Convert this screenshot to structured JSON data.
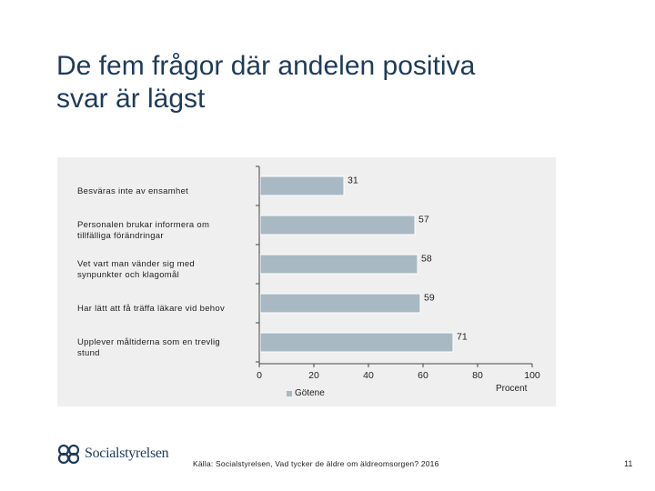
{
  "slide": {
    "title_line1": "De fem frågor där andelen positiva",
    "title_line2": "svar är lägst",
    "source": "Källa: Socialstyrelsen, Vad tycker de äldre om äldreomsorgen? 2016",
    "page_number": "11",
    "logo_text": "Socialstyrelsen"
  },
  "colors": {
    "bar": "#a9b9c3",
    "panel": "#efefef",
    "title": "#1f3b5a"
  },
  "chart_data": {
    "type": "bar",
    "orientation": "horizontal",
    "categories": [
      "Besväras inte av ensamhet",
      "Personalen brukar informera om tillfälliga förändringar",
      "Vet vart man vänder sig med synpunkter och klagomål",
      "Har lätt att få träffa läkare vid behov",
      "Upplever måltiderna som en trevlig stund"
    ],
    "category_lines": [
      [
        "Besväras inte av ensamhet"
      ],
      [
        "Personalen brukar informera om",
        "tillfälliga förändringar"
      ],
      [
        "Vet vart man vänder sig med",
        "synpunkter och klagomål"
      ],
      [
        "Har lätt att få träffa läkare vid behov"
      ],
      [
        "Upplever måltiderna som en trevlig",
        "stund"
      ]
    ],
    "series": [
      {
        "name": "Götene",
        "values": [
          31,
          57,
          58,
          59,
          71
        ]
      }
    ],
    "xlim": [
      0,
      100
    ],
    "xticks": [
      0,
      20,
      40,
      60,
      80,
      100
    ],
    "xlabel": "Procent",
    "ylabel": "",
    "grid": false,
    "legend_position": "bottom"
  }
}
